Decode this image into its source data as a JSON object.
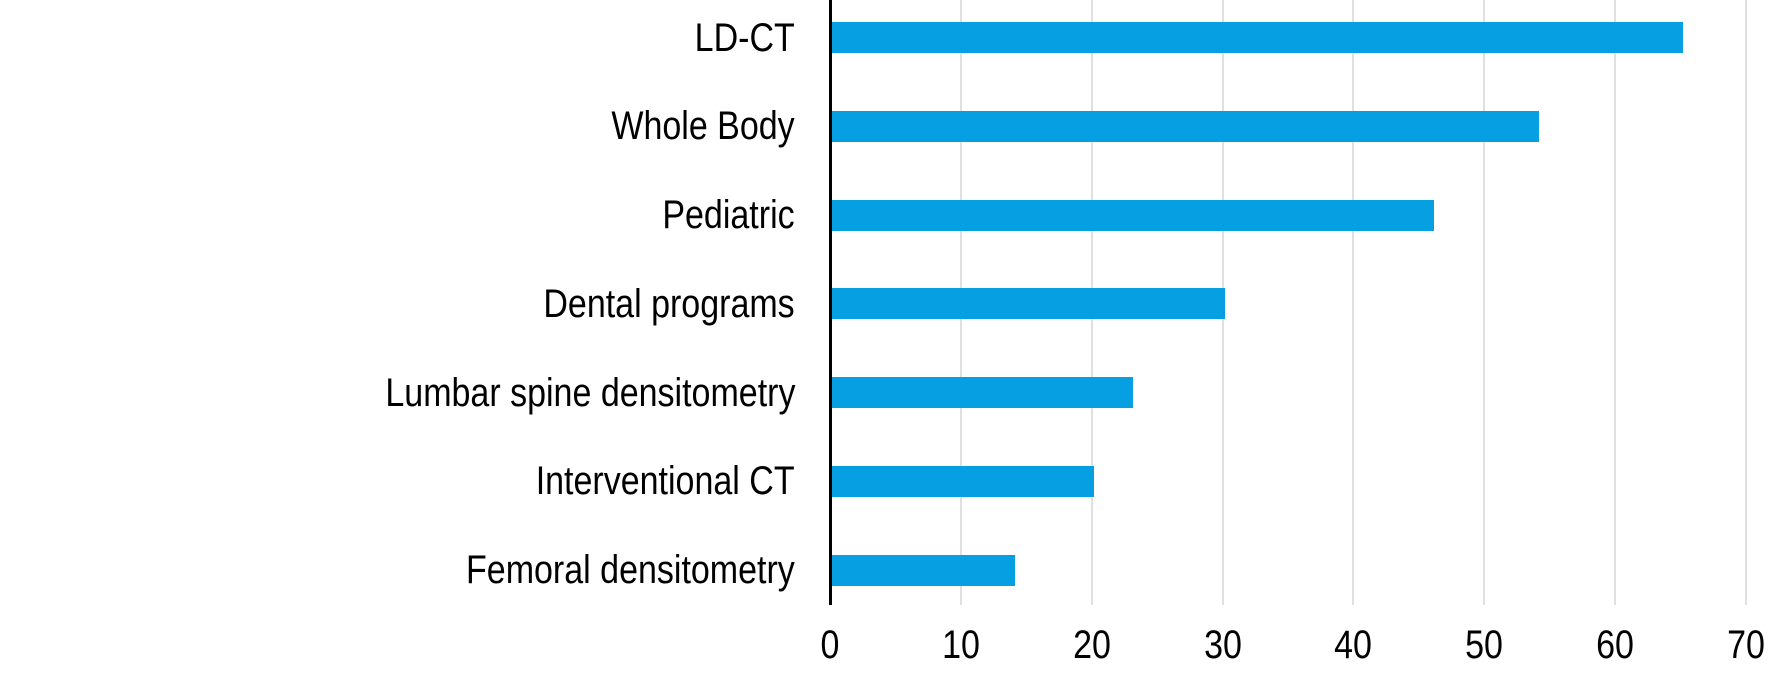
{
  "chart_data": {
    "type": "bar",
    "orientation": "horizontal",
    "title": "",
    "xlabel": "",
    "ylabel": "",
    "categories": [
      "LD-CT",
      "Whole Body",
      "Pediatric",
      "Dental programs",
      "Lumbar spine densitometry",
      "Interventional CT",
      "Femoral densitometry"
    ],
    "values": [
      65,
      54,
      46,
      30,
      23,
      20,
      14
    ],
    "xlim": [
      0,
      70
    ],
    "xticks": [
      0,
      10,
      20,
      30,
      40,
      50,
      60,
      70
    ],
    "grid": true,
    "legend": null,
    "colors": {
      "bar": "#069FE2",
      "gridline": "#E0E0E0",
      "axis": "#000000",
      "text": "#000000",
      "background": "#FFFFFF"
    }
  }
}
